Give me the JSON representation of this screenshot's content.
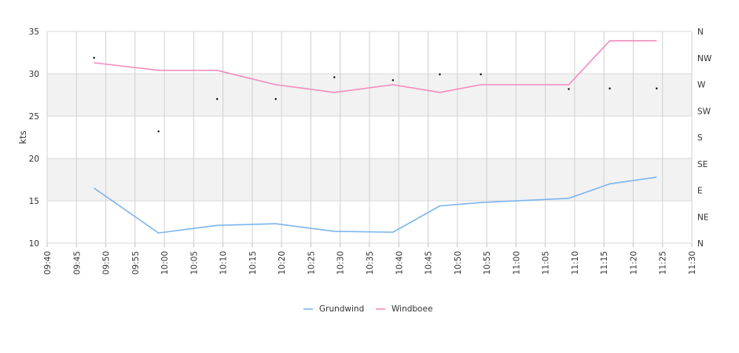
{
  "chart_data": {
    "type": "line",
    "title": "",
    "ylabel": "kts",
    "ylim": [
      10,
      35
    ],
    "yticks": [
      "10",
      "15",
      "20",
      "25",
      "30",
      "35"
    ],
    "x_axis_range": [
      "09:40",
      "11:30"
    ],
    "xticks": [
      "09:40",
      "09:45",
      "09:50",
      "09:55",
      "10:00",
      "10:05",
      "10:10",
      "10:15",
      "10:20",
      "10:25",
      "10:30",
      "10:35",
      "10:40",
      "10:45",
      "10:50",
      "10:55",
      "11:00",
      "11:05",
      "11:10",
      "11:15",
      "11:20",
      "11:25",
      "11:30"
    ],
    "right_axis": {
      "labels": [
        "N",
        "NE",
        "E",
        "SE",
        "S",
        "SW",
        "W",
        "NW",
        "N"
      ],
      "range_degrees": [
        0,
        360
      ]
    },
    "grid": true,
    "legend_position": "bottom",
    "series": [
      {
        "name": "Grundwind",
        "color": "#7cb5ec",
        "points": [
          [
            "09:48",
            16.5
          ],
          [
            "09:59",
            11.2
          ],
          [
            "10:09",
            12.1
          ],
          [
            "10:19",
            12.3
          ],
          [
            "10:29",
            11.4
          ],
          [
            "10:39",
            11.3
          ],
          [
            "10:47",
            14.4
          ],
          [
            "10:54",
            14.8
          ],
          [
            "11:09",
            15.3
          ],
          [
            "11:16",
            17.0
          ],
          [
            "11:24",
            17.8
          ]
        ]
      },
      {
        "name": "Windboee",
        "color": "#f08cbf",
        "points": [
          [
            "09:48",
            31.3
          ],
          [
            "09:59",
            30.4
          ],
          [
            "10:09",
            30.4
          ],
          [
            "10:19",
            28.7
          ],
          [
            "10:29",
            27.8
          ],
          [
            "10:39",
            28.7
          ],
          [
            "10:47",
            27.8
          ],
          [
            "10:54",
            28.7
          ],
          [
            "11:09",
            28.7
          ],
          [
            "11:16",
            33.9
          ],
          [
            "11:24",
            33.9
          ]
        ]
      }
    ],
    "direction_series": {
      "color": "#000000",
      "points": [
        [
          "09:48",
          315
        ],
        [
          "09:59",
          190
        ],
        [
          "10:09",
          245
        ],
        [
          "10:19",
          245
        ],
        [
          "10:29",
          282
        ],
        [
          "10:39",
          277
        ],
        [
          "10:47",
          287
        ],
        [
          "10:54",
          287
        ],
        [
          "11:09",
          262
        ],
        [
          "11:16",
          263
        ],
        [
          "11:24",
          263
        ]
      ]
    }
  }
}
